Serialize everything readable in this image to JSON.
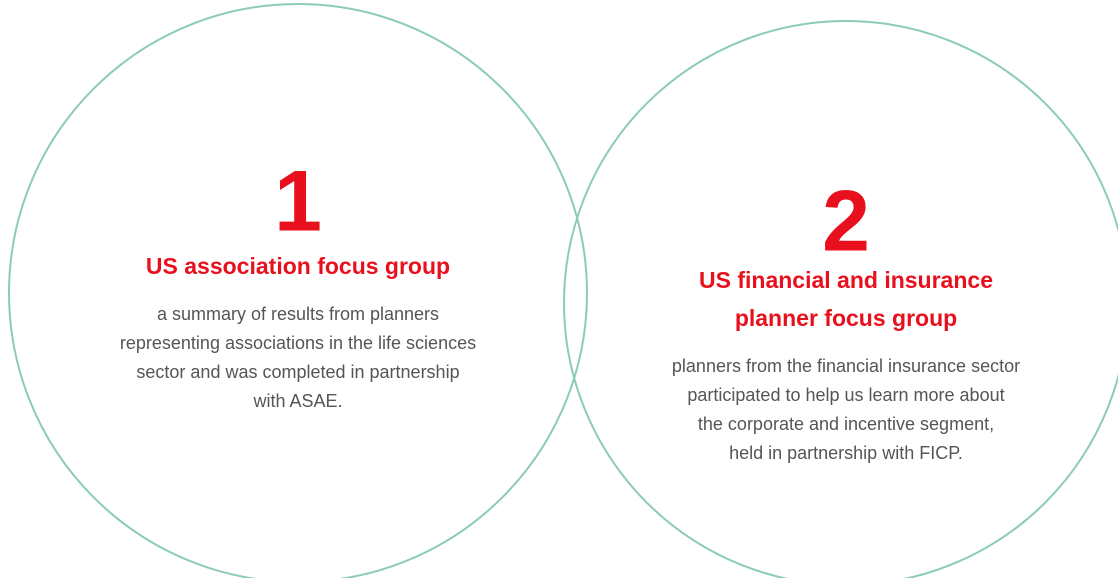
{
  "items": [
    {
      "number": "1",
      "title": [
        "US association focus group"
      ],
      "body": [
        "a summary of results from planners",
        "representing associations in the life sciences",
        "sector and was completed in partnership",
        "with ASAE."
      ]
    },
    {
      "number": "2",
      "title": [
        "US financial and insurance",
        "planner focus group"
      ],
      "body": [
        "planners from the financial insurance sector",
        "participated to help us learn more about",
        "the corporate and incentive segment,",
        "held in partnership with FICP."
      ]
    }
  ]
}
